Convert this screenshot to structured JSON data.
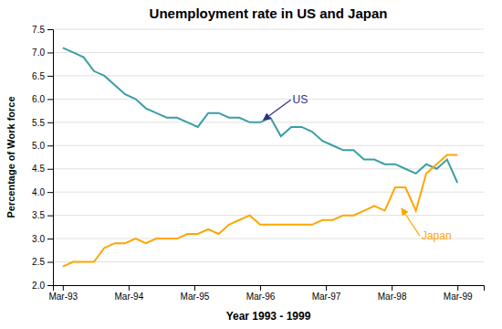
{
  "chart_data": {
    "type": "line",
    "title": "Unemployment rate in US and Japan",
    "x_label": "Year 1993 - 1999",
    "y_label": "Percentage of Work force",
    "xlim": [
      -0.15,
      6.4
    ],
    "xticks": [
      {
        "value": 0,
        "label": "Mar-93"
      },
      {
        "value": 1,
        "label": "Mar-94"
      },
      {
        "value": 2,
        "label": "Mar-95"
      },
      {
        "value": 3,
        "label": "Mar-96"
      },
      {
        "value": 4,
        "label": "Mar-97"
      },
      {
        "value": 5,
        "label": "Mar-98"
      },
      {
        "value": 6,
        "label": "Mar-99"
      }
    ],
    "ylim": [
      2.0,
      7.5
    ],
    "yticks": [
      {
        "value": 2.0,
        "label": "2.0"
      },
      {
        "value": 2.5,
        "label": "2.5"
      },
      {
        "value": 3.0,
        "label": "3.0"
      },
      {
        "value": 3.5,
        "label": "3.5"
      },
      {
        "value": 4.0,
        "label": "4.0"
      },
      {
        "value": 4.5,
        "label": "4.5"
      },
      {
        "value": 5.0,
        "label": "5.0"
      },
      {
        "value": 5.5,
        "label": "5.5"
      },
      {
        "value": 6.0,
        "label": "6.0"
      },
      {
        "value": 6.5,
        "label": "6.5"
      },
      {
        "value": 7.0,
        "label": "7.0"
      },
      {
        "value": 7.5,
        "label": "7.5"
      }
    ],
    "grid": true,
    "series": [
      {
        "color": "#3A9EA5",
        "values": [
          7.1,
          7.0,
          6.9,
          6.6,
          6.5,
          6.3,
          6.1,
          6.0,
          5.8,
          5.7,
          5.6,
          5.6,
          5.5,
          5.4,
          5.7,
          5.7,
          5.6,
          5.6,
          5.5,
          5.5,
          5.6,
          5.2,
          5.4,
          5.4,
          5.3,
          5.1,
          5.0,
          4.9,
          4.9,
          4.7,
          4.7,
          4.6,
          4.6,
          4.5,
          4.4,
          4.6,
          4.5,
          4.7,
          4.2
        ]
      },
      {
        "color": "#FFA500",
        "values": [
          2.4,
          2.5,
          2.5,
          2.5,
          2.8,
          2.9,
          2.9,
          3.0,
          2.9,
          3.0,
          3.0,
          3.0,
          3.1,
          3.1,
          3.2,
          3.1,
          3.3,
          3.4,
          3.5,
          3.3,
          3.3,
          3.3,
          3.3,
          3.3,
          3.3,
          3.4,
          3.4,
          3.5,
          3.5,
          3.6,
          3.7,
          3.6,
          4.1,
          4.1,
          3.6,
          4.4,
          4.6,
          4.8,
          4.8
        ]
      }
    ],
    "annotations": [
      {
        "text": "US",
        "color": "#303080",
        "x": 3.05,
        "y": 5.55
      },
      {
        "text": "Japan",
        "color": "#FFA500",
        "x": 5.15,
        "y": 3.65
      }
    ]
  }
}
